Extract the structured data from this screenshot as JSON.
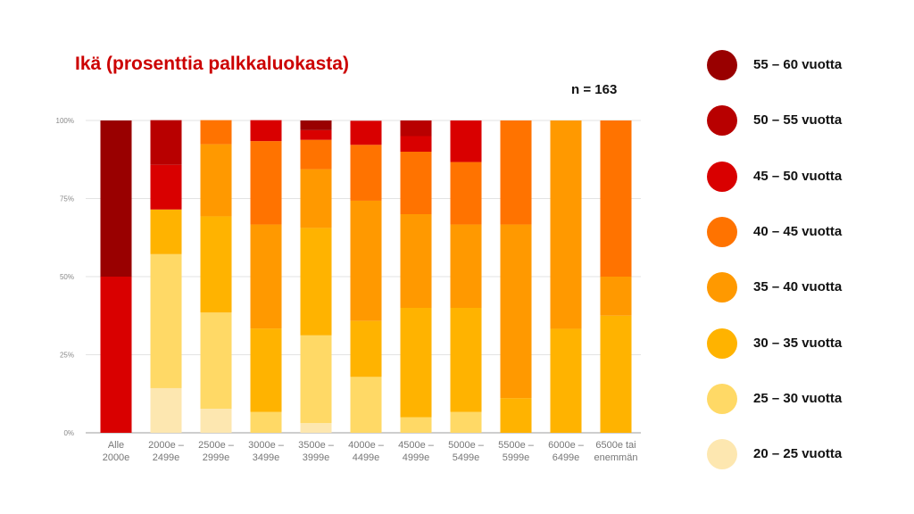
{
  "chart_data": {
    "type": "bar",
    "stacked": true,
    "title": "Ikä (prosenttia palkkaluokasta)",
    "annotation": "n = 163",
    "categories": [
      "Alle 2000e",
      "2000e – 2499e",
      "2500e – 2999e",
      "3000e – 3499e",
      "3500e – 3999e",
      "4000e – 4499e",
      "4500e – 4999e",
      "5000e – 5499e",
      "5500e – 5999e",
      "6000e – 6499e",
      "6500e tai enemmän"
    ],
    "category_lines": [
      [
        "Alle",
        "2000e"
      ],
      [
        "2000e –",
        "2499e"
      ],
      [
        "2500e –",
        "2999e"
      ],
      [
        "3000e –",
        "3499e"
      ],
      [
        "3500e –",
        "3999e"
      ],
      [
        "4000e –",
        "4499e"
      ],
      [
        "4500e –",
        "4999e"
      ],
      [
        "5000e –",
        "5499e"
      ],
      [
        "5500e –",
        "5999e"
      ],
      [
        "6000e –",
        "6499e"
      ],
      [
        "6500e tai",
        "enemmän"
      ]
    ],
    "ylim": [
      0,
      100
    ],
    "yticks": [
      0,
      25,
      50,
      75,
      100
    ],
    "ytick_labels": [
      "0%",
      "25%",
      "50%",
      "75%",
      "100%"
    ],
    "grid": true,
    "legend_position": "right",
    "series": [
      {
        "name": "20 – 25 vuotta",
        "color": "#fde7b0",
        "values": [
          0,
          14.3,
          7.7,
          0,
          3.1,
          0,
          0,
          0,
          0,
          0,
          0
        ]
      },
      {
        "name": "25 – 30 vuotta",
        "color": "#ffd966",
        "values": [
          0,
          42.9,
          30.8,
          6.7,
          28.1,
          17.9,
          5.0,
          6.7,
          0,
          0,
          0
        ]
      },
      {
        "name": "30 – 35 vuotta",
        "color": "#ffb300",
        "values": [
          0,
          14.3,
          30.8,
          26.7,
          34.4,
          17.9,
          35.0,
          33.3,
          11.1,
          33.3,
          37.5
        ]
      },
      {
        "name": "35 – 40 vuotta",
        "color": "#ff9900",
        "values": [
          0,
          0,
          23.1,
          33.3,
          18.8,
          38.5,
          30.0,
          26.7,
          55.6,
          66.7,
          12.5
        ]
      },
      {
        "name": "40 – 45 vuotta",
        "color": "#ff7300",
        "values": [
          0,
          0,
          7.7,
          26.7,
          9.4,
          17.9,
          20.0,
          20.0,
          33.3,
          0,
          50.0
        ]
      },
      {
        "name": "45 – 50 vuotta",
        "color": "#d90000",
        "values": [
          50.0,
          14.3,
          0,
          6.7,
          3.1,
          7.7,
          5.0,
          13.3,
          0,
          0,
          0
        ]
      },
      {
        "name": "50 – 55 vuotta",
        "color": "#b80000",
        "values": [
          0,
          14.3,
          0,
          0,
          0,
          0,
          5.0,
          0,
          0,
          0,
          0
        ]
      },
      {
        "name": "55 – 60 vuotta",
        "color": "#990000",
        "values": [
          50.0,
          0,
          0,
          0,
          3.1,
          0,
          0,
          0,
          0,
          0,
          0
        ]
      }
    ],
    "legend_order": [
      7,
      6,
      5,
      4,
      3,
      2,
      1,
      0
    ]
  }
}
